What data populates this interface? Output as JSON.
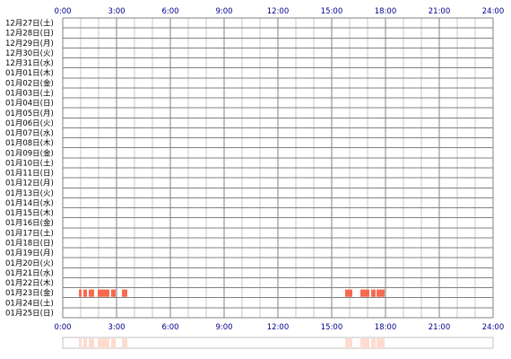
{
  "chart_data": {
    "type": "heatmap",
    "title": "",
    "x_ticks": [
      "0:00",
      "3:00",
      "6:00",
      "9:00",
      "12:00",
      "15:00",
      "18:00",
      "21:00",
      "24:00"
    ],
    "xlim": [
      0,
      24
    ],
    "x_unit": "hours",
    "rows": [
      "12月27日(土)",
      "12月28日(日)",
      "12月29日(月)",
      "12月30日(火)",
      "12月31日(水)",
      "01月01日(木)",
      "01月02日(金)",
      "01月03日(土)",
      "01月04日(日)",
      "01月05日(月)",
      "01月06日(火)",
      "01月07日(水)",
      "01月08日(木)",
      "01月09日(金)",
      "01月10日(土)",
      "01月11日(日)",
      "01月12日(月)",
      "01月13日(火)",
      "01月14日(水)",
      "01月15日(木)",
      "01月16日(金)",
      "01月17日(土)",
      "01月18日(日)",
      "01月19日(月)",
      "01月20日(火)",
      "01月21日(水)",
      "01月22日(木)",
      "01月23日(金)",
      "01月24日(土)",
      "01月25日(日)"
    ],
    "events": [
      {
        "row": "01月23日(金)",
        "start": 0.9,
        "end": 1.05
      },
      {
        "row": "01月23日(金)",
        "start": 1.15,
        "end": 1.35
      },
      {
        "row": "01月23日(金)",
        "start": 1.45,
        "end": 1.75
      },
      {
        "row": "01月23日(金)",
        "start": 1.95,
        "end": 2.6
      },
      {
        "row": "01月23日(金)",
        "start": 2.7,
        "end": 2.95
      },
      {
        "row": "01月23日(金)",
        "start": 3.3,
        "end": 3.6
      },
      {
        "row": "01月23日(金)",
        "start": 15.75,
        "end": 16.15
      },
      {
        "row": "01月23日(金)",
        "start": 16.6,
        "end": 17.1
      },
      {
        "row": "01月23日(金)",
        "start": 17.2,
        "end": 17.45
      },
      {
        "row": "01月23日(金)",
        "start": 17.5,
        "end": 17.95
      }
    ],
    "grid": true,
    "colors": {
      "event": "#f86a50",
      "summary_event": "#fddccf",
      "grid_line": "#808080",
      "hour_line": "#c8c8c8",
      "tick_text": "#00008b",
      "summary_border": "#c0c0c0"
    }
  }
}
